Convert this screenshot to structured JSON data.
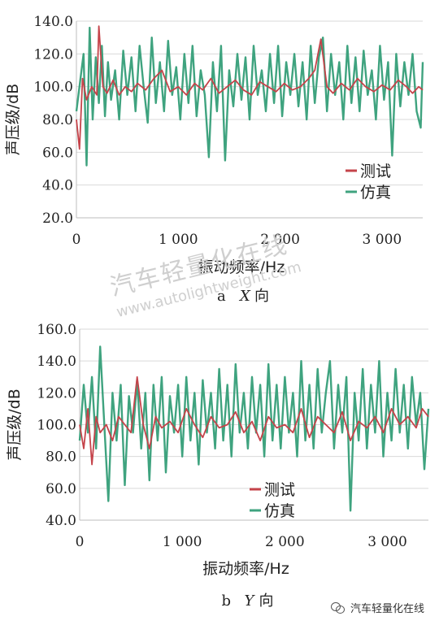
{
  "watermark": {
    "cn": "汽车轻量化在线",
    "url": "www.autolightweight.com"
  },
  "badge": {
    "text": "汽车轻量化在线",
    "icon": "wechat-icon"
  },
  "colors": {
    "test": "#c5434a",
    "sim": "#3fa37f",
    "grid": "#d9d9d9",
    "axis": "#bdbdbd"
  },
  "chart_data": [
    {
      "type": "line",
      "caption_prefix": "a",
      "caption_axis": "X",
      "caption_suffix": "向",
      "xlabel": "振动频率/Hz",
      "ylabel": "声压级/dB",
      "xlim": [
        0,
        3400
      ],
      "ylim": [
        20,
        140
      ],
      "yticks": [
        "20.0",
        "40.0",
        "60.0",
        "80.0",
        "100.0",
        "120.0",
        "140.0"
      ],
      "xticks": [
        {
          "v": 0,
          "t": "0"
        },
        {
          "v": 1000,
          "t": "1 000"
        },
        {
          "v": 2000,
          "t": "2 000"
        },
        {
          "v": 3000,
          "t": "3 000"
        }
      ],
      "legend_position": "bottom-right",
      "series": [
        {
          "name": "测试",
          "color": "#c5434a",
          "x": [
            0,
            30,
            60,
            100,
            150,
            200,
            220,
            260,
            300,
            360,
            420,
            480,
            540,
            600,
            680,
            760,
            840,
            920,
            1000,
            1080,
            1160,
            1240,
            1320,
            1400,
            1480,
            1560,
            1640,
            1720,
            1800,
            1880,
            1960,
            2040,
            2120,
            2200,
            2280,
            2340,
            2400,
            2460,
            2520,
            2600,
            2680,
            2760,
            2840,
            2920,
            3000,
            3080,
            3160,
            3240,
            3300,
            3360,
            3400
          ],
          "values": [
            80,
            62,
            105,
            92,
            100,
            95,
            137,
            100,
            96,
            104,
            95,
            100,
            97,
            102,
            98,
            105,
            110,
            97,
            100,
            95,
            102,
            98,
            105,
            96,
            100,
            104,
            98,
            95,
            103,
            100,
            97,
            102,
            98,
            100,
            105,
            110,
            129,
            100,
            96,
            102,
            98,
            105,
            100,
            97,
            101,
            98,
            104,
            100,
            96,
            100,
            98
          ]
        },
        {
          "name": "仿真",
          "color": "#3fa37f",
          "x": [
            0,
            40,
            70,
            100,
            130,
            160,
            190,
            220,
            250,
            280,
            310,
            340,
            380,
            420,
            460,
            500,
            540,
            580,
            620,
            660,
            700,
            740,
            780,
            820,
            860,
            900,
            940,
            980,
            1020,
            1060,
            1100,
            1140,
            1180,
            1220,
            1260,
            1300,
            1340,
            1380,
            1420,
            1460,
            1500,
            1540,
            1580,
            1620,
            1660,
            1700,
            1740,
            1780,
            1820,
            1860,
            1900,
            1940,
            1980,
            2020,
            2060,
            2100,
            2140,
            2180,
            2220,
            2260,
            2300,
            2340,
            2380,
            2420,
            2460,
            2500,
            2540,
            2580,
            2620,
            2660,
            2700,
            2740,
            2780,
            2820,
            2860,
            2900,
            2940,
            2980,
            3020,
            3060,
            3100,
            3140,
            3180,
            3220,
            3260,
            3300,
            3340,
            3380,
            3400
          ],
          "values": [
            85,
            105,
            120,
            52,
            136,
            80,
            118,
            90,
            125,
            82,
            115,
            92,
            110,
            80,
            122,
            95,
            118,
            85,
            125,
            100,
            78,
            130,
            90,
            115,
            85,
            128,
            95,
            112,
            80,
            120,
            90,
            125,
            82,
            110,
            95,
            57,
            115,
            85,
            125,
            55,
            110,
            88,
            120,
            92,
            118,
            80,
            125,
            95,
            110,
            85,
            120,
            90,
            125,
            82,
            115,
            95,
            120,
            88,
            115,
            80,
            125,
            90,
            118,
            130,
            85,
            120,
            95,
            115,
            80,
            125,
            90,
            118,
            85,
            122,
            95,
            110,
            80,
            125,
            92,
            115,
            58,
            120,
            88,
            115,
            95,
            120,
            85,
            75,
            115
          ]
        }
      ]
    },
    {
      "type": "line",
      "caption_prefix": "b",
      "caption_axis": "Y",
      "caption_suffix": "向",
      "xlabel": "振动频率/Hz",
      "ylabel": "声压级/dB",
      "xlim": [
        0,
        3400
      ],
      "ylim": [
        40,
        160
      ],
      "yticks": [
        "40.0",
        "60.0",
        "80.0",
        "100.0",
        "120.0",
        "140.0",
        "160.0"
      ],
      "xticks": [
        {
          "v": 0,
          "t": "0"
        },
        {
          "v": 1000,
          "t": "1 000"
        },
        {
          "v": 2000,
          "t": "2 000"
        },
        {
          "v": 3000,
          "t": "3 000"
        }
      ],
      "legend_position": "bottom-right",
      "series": [
        {
          "name": "测试",
          "color": "#c5434a",
          "x": [
            0,
            40,
            80,
            120,
            160,
            200,
            260,
            320,
            380,
            440,
            500,
            560,
            620,
            680,
            740,
            800,
            880,
            960,
            1040,
            1120,
            1200,
            1280,
            1360,
            1440,
            1520,
            1600,
            1680,
            1760,
            1840,
            1920,
            2000,
            2080,
            2160,
            2240,
            2320,
            2400,
            2480,
            2560,
            2640,
            2720,
            2800,
            2880,
            2960,
            3040,
            3120,
            3200,
            3280,
            3340,
            3400
          ],
          "values": [
            100,
            85,
            110,
            75,
            105,
            95,
            100,
            90,
            105,
            100,
            95,
            130,
            100,
            85,
            105,
            98,
            102,
            95,
            110,
            100,
            92,
            105,
            98,
            100,
            108,
            95,
            102,
            90,
            105,
            98,
            100,
            95,
            110,
            92,
            105,
            100,
            95,
            108,
            90,
            102,
            98,
            105,
            95,
            110,
            100,
            105,
            98,
            110,
            105
          ]
        },
        {
          "name": "仿真",
          "color": "#3fa37f",
          "x": [
            0,
            40,
            80,
            120,
            160,
            200,
            240,
            280,
            320,
            360,
            400,
            440,
            480,
            520,
            560,
            600,
            640,
            680,
            720,
            760,
            800,
            840,
            880,
            920,
            960,
            1000,
            1040,
            1080,
            1120,
            1160,
            1200,
            1240,
            1280,
            1320,
            1360,
            1400,
            1440,
            1480,
            1520,
            1560,
            1600,
            1640,
            1680,
            1720,
            1760,
            1800,
            1840,
            1880,
            1920,
            1960,
            2000,
            2040,
            2080,
            2120,
            2160,
            2200,
            2240,
            2280,
            2320,
            2360,
            2400,
            2440,
            2480,
            2520,
            2560,
            2600,
            2640,
            2680,
            2720,
            2760,
            2800,
            2840,
            2880,
            2920,
            2960,
            3000,
            3040,
            3080,
            3120,
            3160,
            3200,
            3240,
            3280,
            3320,
            3360,
            3400
          ],
          "values": [
            90,
            125,
            95,
            130,
            85,
            149,
            100,
            52,
            120,
            90,
            125,
            62,
            118,
            95,
            128,
            85,
            120,
            65,
            125,
            90,
            130,
            70,
            118,
            95,
            125,
            80,
            130,
            90,
            120,
            75,
            128,
            95,
            120,
            85,
            135,
            90,
            125,
            80,
            138,
            95,
            120,
            85,
            130,
            95,
            125,
            80,
            138,
            90,
            125,
            85,
            130,
            95,
            120,
            80,
            140,
            90,
            125,
            85,
            135,
            95,
            120,
            140,
            85,
            125,
            95,
            130,
            46,
            120,
            90,
            135,
            85,
            125,
            95,
            140,
            80,
            120,
            90,
            135,
            95,
            125,
            85,
            130,
            100,
            120,
            72,
            110
          ]
        }
      ]
    }
  ]
}
